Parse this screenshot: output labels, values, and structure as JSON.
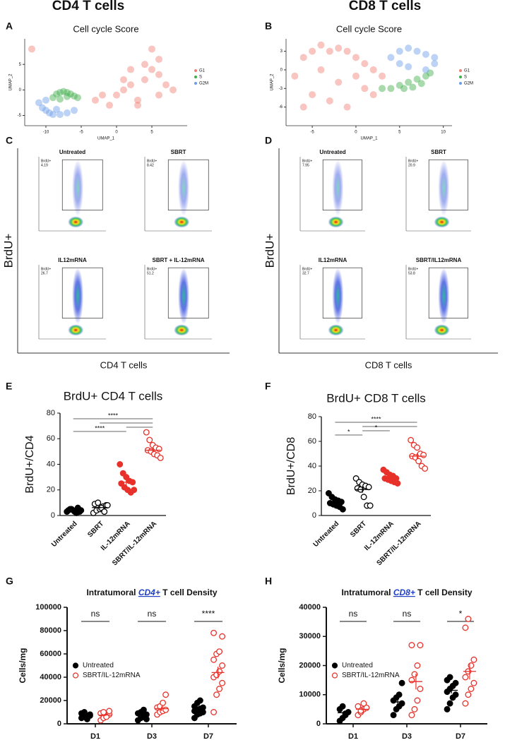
{
  "headers": [
    "CD4 T cells",
    "CD8 T cells"
  ],
  "panel_labels": [
    "A",
    "B",
    "C",
    "D",
    "E",
    "F",
    "G",
    "H"
  ],
  "chart_data": [
    {
      "type": "scatter",
      "title": "Cell cycle Score",
      "x_label": "UMAP_1",
      "y_label": "UMAP_2",
      "xlim": [
        -13,
        10
      ],
      "ylim": [
        -7,
        10
      ],
      "xticks": [
        -10,
        -5,
        0,
        5
      ],
      "yticks": [
        -5,
        0,
        5
      ],
      "legend": "right",
      "series": [
        {
          "name": "G1",
          "color": "#f07e74",
          "x": [
            -3,
            -1,
            0,
            1,
            2,
            3,
            4,
            5,
            6,
            7,
            8,
            2,
            4,
            6,
            5,
            3,
            1,
            -2,
            6,
            -12
          ],
          "y": [
            -2,
            -3,
            -1,
            0,
            1,
            -2,
            2,
            4,
            3,
            1,
            0,
            4,
            5,
            -1,
            8,
            -3,
            2,
            -1,
            6,
            8
          ]
        },
        {
          "name": "S",
          "color": "#3fae49",
          "x": [
            -9,
            -8.5,
            -8,
            -7.5,
            -7,
            -6.5,
            -6,
            -5.5,
            -8,
            -7
          ],
          "y": [
            -1.5,
            -0.8,
            -0.5,
            -0.3,
            -0.5,
            -0.8,
            -1.2,
            -1.5,
            -1.8,
            -1.3
          ]
        },
        {
          "name": "G2M",
          "color": "#6c9ee8",
          "x": [
            -11,
            -10.5,
            -10,
            -9.5,
            -9,
            -8,
            -7,
            -6,
            -10,
            -8.5
          ],
          "y": [
            -2.5,
            -3.5,
            -4,
            -4.5,
            -4.8,
            -4.8,
            -4.5,
            -4,
            -2,
            -3.8
          ]
        }
      ]
    },
    {
      "type": "scatter",
      "title": "Cell cycle Score",
      "x_label": "UMAP_1",
      "y_label": "UMAP_2",
      "xlim": [
        -8,
        11
      ],
      "ylim": [
        -9,
        5
      ],
      "xticks": [
        -5,
        0,
        5,
        10
      ],
      "yticks": [
        -6,
        -3,
        0,
        3
      ],
      "legend": "right",
      "series": [
        {
          "name": "G1",
          "color": "#f07e74",
          "x": [
            -7,
            -6,
            -5,
            -4,
            -3,
            -2,
            -1,
            0,
            1,
            2,
            3,
            -5,
            -3,
            -1,
            1,
            -4,
            -2,
            0,
            2,
            -6
          ],
          "y": [
            -1,
            2,
            3,
            4,
            3,
            3.5,
            3,
            2,
            1,
            0,
            -1,
            -4,
            -5,
            -6,
            -3,
            0,
            -2,
            -1,
            -4,
            -6
          ]
        },
        {
          "name": "S",
          "color": "#3fae49",
          "x": [
            3,
            4,
            5,
            6,
            7,
            8,
            8.5,
            5.5,
            6.5,
            7.5
          ],
          "y": [
            -3,
            -3,
            -2.5,
            -2,
            -1.5,
            -1,
            -0.5,
            -3,
            -2.8,
            -2.2
          ]
        },
        {
          "name": "G2M",
          "color": "#6c9ee8",
          "x": [
            4,
            5,
            6,
            7,
            8,
            9,
            9,
            8,
            5,
            6
          ],
          "y": [
            2,
            3,
            3.5,
            3,
            2.5,
            2,
            1,
            0,
            1,
            0.5
          ]
        }
      ]
    },
    {
      "type": "flow",
      "x_label": "CD4 T cells",
      "y_label": "BrdU+",
      "gate_label": "BrdU+",
      "panels": [
        {
          "title": "Untreated",
          "value": 4.19
        },
        {
          "title": "SBRT",
          "value": 8.42
        },
        {
          "title": "IL12mRNA",
          "value": 26.7
        },
        {
          "title": "SBRT + IL-12mRNA",
          "value": 51.2
        }
      ]
    },
    {
      "type": "flow",
      "x_label": "CD8 T cells",
      "y_label": "BrdU+",
      "gate_label": "BrdU+",
      "panels": [
        {
          "title": "Untreated",
          "value": 7.95
        },
        {
          "title": "SBRT",
          "value": 20.9
        },
        {
          "title": "IL12mRNA",
          "value": 32.7
        },
        {
          "title": "SBRT/IL12mRNA",
          "value": 53.8
        }
      ]
    },
    {
      "type": "dot",
      "title": "BrdU+ CD4 T cells",
      "y_label": "BrdU+/CD4",
      "categories": [
        "Untreated",
        "SBRT",
        "IL-12mRNA",
        "SBRT/IL-12mRNA"
      ],
      "ylim": [
        0,
        80
      ],
      "yticks": [
        0,
        20,
        40,
        60,
        80
      ],
      "groups": [
        {
          "color": "#000000",
          "filled": true,
          "values": [
            3,
            5,
            4,
            2,
            3,
            4,
            5,
            3,
            6,
            4
          ],
          "mean": 3.8,
          "sem": 0.4
        },
        {
          "color": "#000000",
          "filled": false,
          "values": [
            2,
            4,
            5,
            7,
            8,
            9,
            10,
            6,
            3,
            8
          ],
          "mean": 6.2,
          "sem": 0.9
        },
        {
          "color": "#e8312a",
          "filled": true,
          "values": [
            40,
            33,
            30,
            27,
            26,
            25,
            22,
            20,
            18,
            20
          ],
          "mean": 26,
          "sem": 2.1
        },
        {
          "color": "#e8312a",
          "filled": false,
          "values": [
            65,
            59,
            55,
            53,
            52,
            51,
            50,
            48,
            47,
            45
          ],
          "mean": 51,
          "sem": 1.8
        }
      ],
      "brackets": [
        {
          "from": 0,
          "to": 3,
          "label": "****"
        },
        {
          "from": 1,
          "to": 3
        },
        {
          "from": 2,
          "to": 3
        },
        {
          "from": 0,
          "to": 2,
          "label": "****"
        }
      ]
    },
    {
      "type": "dot",
      "title": "BrdU+ CD8 T cells",
      "y_label": "BrdU+/CD8",
      "categories": [
        "Untreated",
        "SBRT",
        "IL-12mRNA",
        "SBRT/IL-12mRNA"
      ],
      "ylim": [
        0,
        80
      ],
      "yticks": [
        0,
        20,
        40,
        60,
        80
      ],
      "groups": [
        {
          "color": "#000000",
          "filled": true,
          "values": [
            18,
            15,
            13,
            12,
            11,
            10,
            9,
            8,
            7,
            5
          ],
          "mean": 11,
          "sem": 1.2
        },
        {
          "color": "#000000",
          "filled": false,
          "values": [
            30,
            27,
            25,
            24,
            23,
            22,
            21,
            15,
            8,
            8
          ],
          "mean": 21,
          "sem": 2.5
        },
        {
          "color": "#e8312a",
          "filled": true,
          "values": [
            37,
            35,
            33,
            32,
            30,
            30,
            29,
            28,
            27,
            26
          ],
          "mean": 30,
          "sem": 1.1
        },
        {
          "color": "#e8312a",
          "filled": false,
          "values": [
            61,
            57,
            55,
            50,
            49,
            48,
            47,
            44,
            40,
            38
          ],
          "mean": 48,
          "sem": 2.3
        }
      ],
      "brackets": [
        {
          "from": 0,
          "to": 3,
          "label": "****"
        },
        {
          "from": 1,
          "to": 3
        },
        {
          "from": 1,
          "to": 2,
          "label": "*"
        },
        {
          "from": 0,
          "to": 1,
          "label": "*"
        }
      ]
    },
    {
      "type": "grouped_dot",
      "title_parts": [
        "Intratumoral ",
        "CD4+",
        " T cell Density"
      ],
      "y_label": "Cells/mg",
      "categories": [
        "D1",
        "D3",
        "D7"
      ],
      "ylim": [
        0,
        100000
      ],
      "yticks": [
        0,
        20000,
        40000,
        60000,
        80000,
        100000
      ],
      "legend": "left",
      "significance": [
        "ns",
        "ns",
        "****"
      ],
      "series": [
        {
          "name": "Untreated",
          "color": "#000000",
          "filled": true,
          "values": [
            [
              5000,
              6000,
              7000,
              8000,
              9000,
              10000,
              4000,
              7000
            ],
            [
              3000,
              5000,
              6000,
              8000,
              9000,
              10000,
              12000,
              4000
            ],
            [
              5000,
              8000,
              9000,
              10000,
              11000,
              12000,
              13000,
              14000,
              15000,
              18000,
              20000
            ]
          ],
          "means": [
            7000,
            7500,
            12000
          ],
          "sems": [
            700,
            1000,
            1300
          ]
        },
        {
          "name": "SBRT/IL-12mRNA",
          "color": "#e8312a",
          "filled": false,
          "values": [
            [
              3000,
              5000,
              7000,
              8000,
              9000,
              10000,
              6000,
              11000
            ],
            [
              8000,
              10000,
              11000,
              12000,
              14000,
              15000,
              18000,
              25000
            ],
            [
              10000,
              25000,
              30000,
              35000,
              40000,
              42000,
              45000,
              50000,
              55000,
              60000,
              62000,
              75000,
              78000
            ]
          ],
          "means": [
            7500,
            13000,
            44000
          ],
          "sems": [
            900,
            1900,
            5000
          ]
        }
      ]
    },
    {
      "type": "grouped_dot",
      "title_parts": [
        "Intratumoral ",
        "CD8+",
        " T cell Density"
      ],
      "y_label": "Cells/mg",
      "categories": [
        "D1",
        "D3",
        "D7"
      ],
      "ylim": [
        0,
        40000
      ],
      "yticks": [
        0,
        10000,
        20000,
        30000,
        40000
      ],
      "legend": "left",
      "significance": [
        "ns",
        "ns",
        "*"
      ],
      "series": [
        {
          "name": "Untreated",
          "color": "#000000",
          "filled": true,
          "values": [
            [
              1000,
              2000,
              3000,
              4000,
              5000,
              6000,
              3500
            ],
            [
              3000,
              5000,
              6000,
              7000,
              8000,
              9000,
              10000,
              14000
            ],
            [
              5000,
              7000,
              9000,
              10000,
              11000,
              12000,
              13000,
              14000,
              15000,
              16000
            ]
          ],
          "means": [
            3800,
            7500,
            11500
          ],
          "sems": [
            600,
            1200,
            1100
          ]
        },
        {
          "name": "SBRT/IL-12mRNA",
          "color": "#e8312a",
          "filled": false,
          "values": [
            [
              3000,
              4000,
              5000,
              5500,
              6000,
              4500,
              7000
            ],
            [
              3000,
              5000,
              8000,
              12000,
              15000,
              17000,
              20000,
              27000,
              27000
            ],
            [
              7000,
              10000,
              12000,
              14000,
              16000,
              18000,
              20000,
              22000,
              33000,
              36000
            ]
          ],
          "means": [
            5000,
            14500,
            18000
          ],
          "sems": [
            500,
            2700,
            2800
          ]
        }
      ]
    }
  ]
}
